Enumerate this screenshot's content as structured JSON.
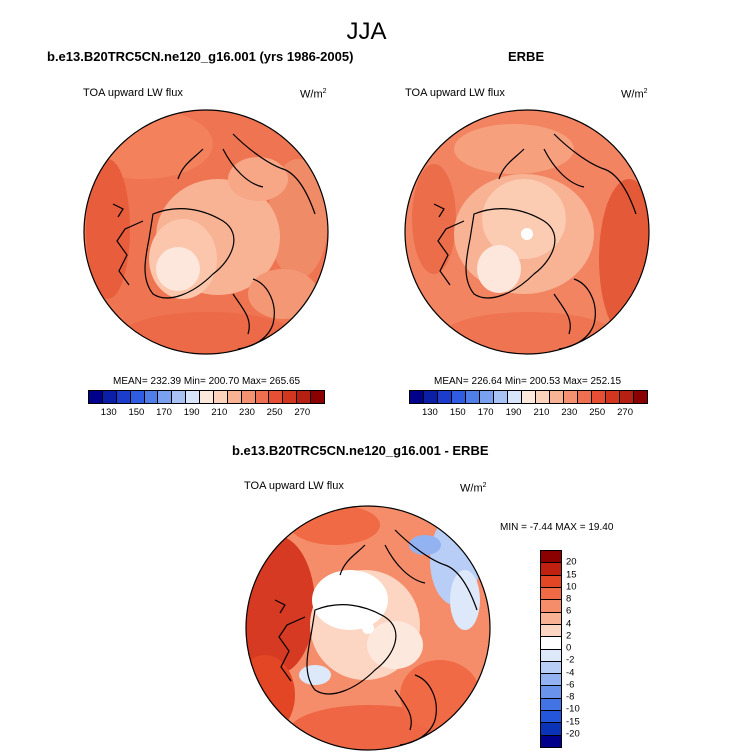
{
  "figure": {
    "season": "JJA"
  },
  "panels": [
    {
      "title": "b.e13.B20TRC5CN.ne120_g16.001 (yrs 1986-2005)",
      "variable": "TOA upward LW flux",
      "units_base": "W/m",
      "units_exp": "2",
      "stats": "MEAN= 232.39  Min= 200.70  Max= 265.65",
      "colorbar_labels": [
        "130",
        "150",
        "170",
        "190",
        "210",
        "230",
        "250",
        "270"
      ]
    },
    {
      "title": "ERBE",
      "variable": "TOA upward LW flux",
      "units_base": "W/m",
      "units_exp": "2",
      "stats": "MEAN= 226.64  Min= 200.53  Max= 252.15",
      "colorbar_labels": [
        "130",
        "150",
        "170",
        "190",
        "210",
        "230",
        "250",
        "270"
      ]
    },
    {
      "title": "b.e13.B20TRC5CN.ne120_g16.001 - ERBE",
      "variable": "TOA upward LW flux",
      "units_base": "W/m",
      "units_exp": "2",
      "stats": "MIN =  -7.44 MAX =  19.40",
      "colorbar_labels": [
        "20",
        "15",
        "10",
        "8",
        "6",
        "4",
        "2",
        "0",
        "-2",
        "-4",
        "-6",
        "-8",
        "-10",
        "-15",
        "-20"
      ]
    }
  ],
  "colors": {
    "abs_scale": [
      "#00008b",
      "#0a1ea8",
      "#1c3ccc",
      "#2f5ce0",
      "#4f7ee9",
      "#7aa0f0",
      "#a8c2f5",
      "#d8e4fa",
      "#fde9dc",
      "#fbd2bb",
      "#f8b395",
      "#f49171",
      "#ef7050",
      "#e64f33",
      "#d2361f",
      "#b52012",
      "#8b0000"
    ],
    "diff_scale": [
      "#8b0000",
      "#c0200f",
      "#e34624",
      "#f06a45",
      "#f58d6a",
      "#f9b294",
      "#fcd6c2",
      "#ffffff",
      "#dde8fb",
      "#b9cef6",
      "#92b2f1",
      "#6a93eb",
      "#4374e4",
      "#2456dc",
      "#0a33b8",
      "#00008b"
    ]
  }
}
